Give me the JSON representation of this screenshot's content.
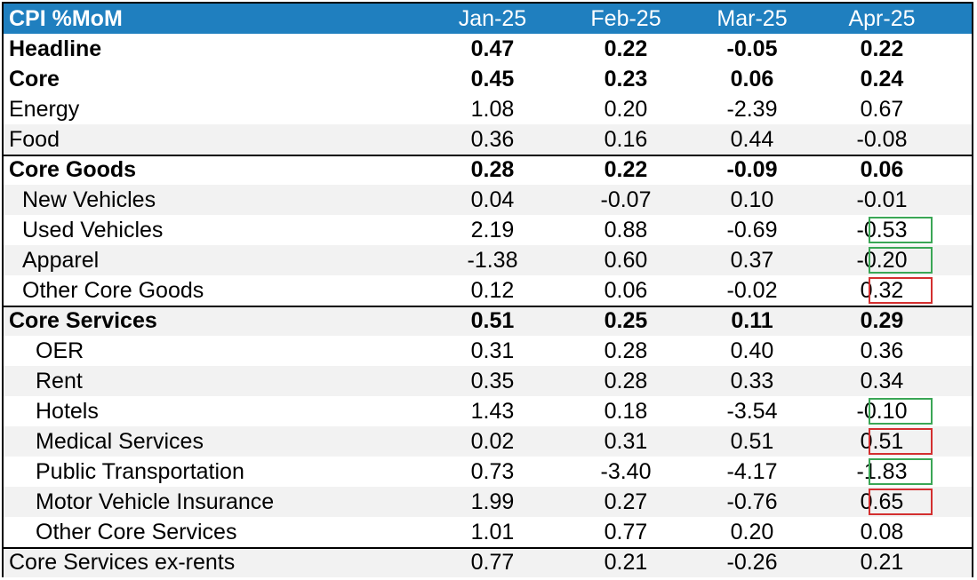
{
  "chart_data": {
    "type": "table",
    "title": "CPI %MoM",
    "columns": [
      "Jan-25",
      "Feb-25",
      "Mar-25",
      "Apr-25"
    ],
    "rows": [
      {
        "label": "Headline",
        "values": [
          "0.47",
          "0.22",
          "-0.05",
          "0.22"
        ],
        "bold": true,
        "indent": 0,
        "shade": false,
        "sep": false
      },
      {
        "label": "Core",
        "values": [
          "0.45",
          "0.23",
          "0.06",
          "0.24"
        ],
        "bold": true,
        "indent": 0,
        "shade": false,
        "sep": false
      },
      {
        "label": "Energy",
        "values": [
          "1.08",
          "0.20",
          "-2.39",
          "0.67"
        ],
        "bold": false,
        "indent": 0,
        "shade": false,
        "sep": false
      },
      {
        "label": "Food",
        "values": [
          "0.36",
          "0.16",
          "0.44",
          "-0.08"
        ],
        "bold": false,
        "indent": 0,
        "shade": true,
        "sep": false
      },
      {
        "label": "Core Goods",
        "values": [
          "0.28",
          "0.22",
          "-0.09",
          "0.06"
        ],
        "bold": true,
        "indent": 0,
        "shade": false,
        "sep": true
      },
      {
        "label": "New Vehicles",
        "values": [
          "0.04",
          "-0.07",
          "0.10",
          "-0.01"
        ],
        "bold": false,
        "indent": 1,
        "shade": true,
        "sep": false
      },
      {
        "label": "Used Vehicles",
        "values": [
          "2.19",
          "0.88",
          "-0.69",
          "-0.53"
        ],
        "bold": false,
        "indent": 1,
        "shade": false,
        "sep": false,
        "highlight": "green"
      },
      {
        "label": "Apparel",
        "values": [
          "-1.38",
          "0.60",
          "0.37",
          "-0.20"
        ],
        "bold": false,
        "indent": 1,
        "shade": true,
        "sep": false,
        "highlight": "green"
      },
      {
        "label": "Other Core Goods",
        "values": [
          "0.12",
          "0.06",
          "-0.02",
          "0.32"
        ],
        "bold": false,
        "indent": 1,
        "shade": false,
        "sep": false,
        "highlight": "red"
      },
      {
        "label": "Core Services",
        "values": [
          "0.51",
          "0.25",
          "0.11",
          "0.29"
        ],
        "bold": true,
        "indent": 0,
        "shade": true,
        "sep": true
      },
      {
        "label": "OER",
        "values": [
          "0.31",
          "0.28",
          "0.40",
          "0.36"
        ],
        "bold": false,
        "indent": 2,
        "shade": false,
        "sep": false
      },
      {
        "label": "Rent",
        "values": [
          "0.35",
          "0.28",
          "0.33",
          "0.34"
        ],
        "bold": false,
        "indent": 2,
        "shade": true,
        "sep": false
      },
      {
        "label": "Hotels",
        "values": [
          "1.43",
          "0.18",
          "-3.54",
          "-0.10"
        ],
        "bold": false,
        "indent": 2,
        "shade": false,
        "sep": false,
        "highlight": "green"
      },
      {
        "label": "Medical Services",
        "values": [
          "0.02",
          "0.31",
          "0.51",
          "0.51"
        ],
        "bold": false,
        "indent": 2,
        "shade": true,
        "sep": false,
        "highlight": "red"
      },
      {
        "label": "Public Transportation",
        "values": [
          "0.73",
          "-3.40",
          "-4.17",
          "-1.83"
        ],
        "bold": false,
        "indent": 2,
        "shade": false,
        "sep": false,
        "highlight": "green"
      },
      {
        "label": "Motor Vehicle Insurance",
        "values": [
          "1.99",
          "0.27",
          "-0.76",
          "0.65"
        ],
        "bold": false,
        "indent": 2,
        "shade": true,
        "sep": false,
        "highlight": "red"
      },
      {
        "label": "Other Core Services",
        "values": [
          "1.01",
          "0.77",
          "0.20",
          "0.08"
        ],
        "bold": false,
        "indent": 2,
        "shade": false,
        "sep": false
      },
      {
        "label": "Core Services ex-rents",
        "values": [
          "0.77",
          "0.21",
          "-0.26",
          "0.21"
        ],
        "bold": false,
        "indent": 0,
        "shade": true,
        "sep": true
      }
    ]
  },
  "colors": {
    "header_bg": "#1f7fbf",
    "shade": "#f2f2f2",
    "highlight_green": "#3aa655",
    "highlight_red": "#d32f2f"
  }
}
